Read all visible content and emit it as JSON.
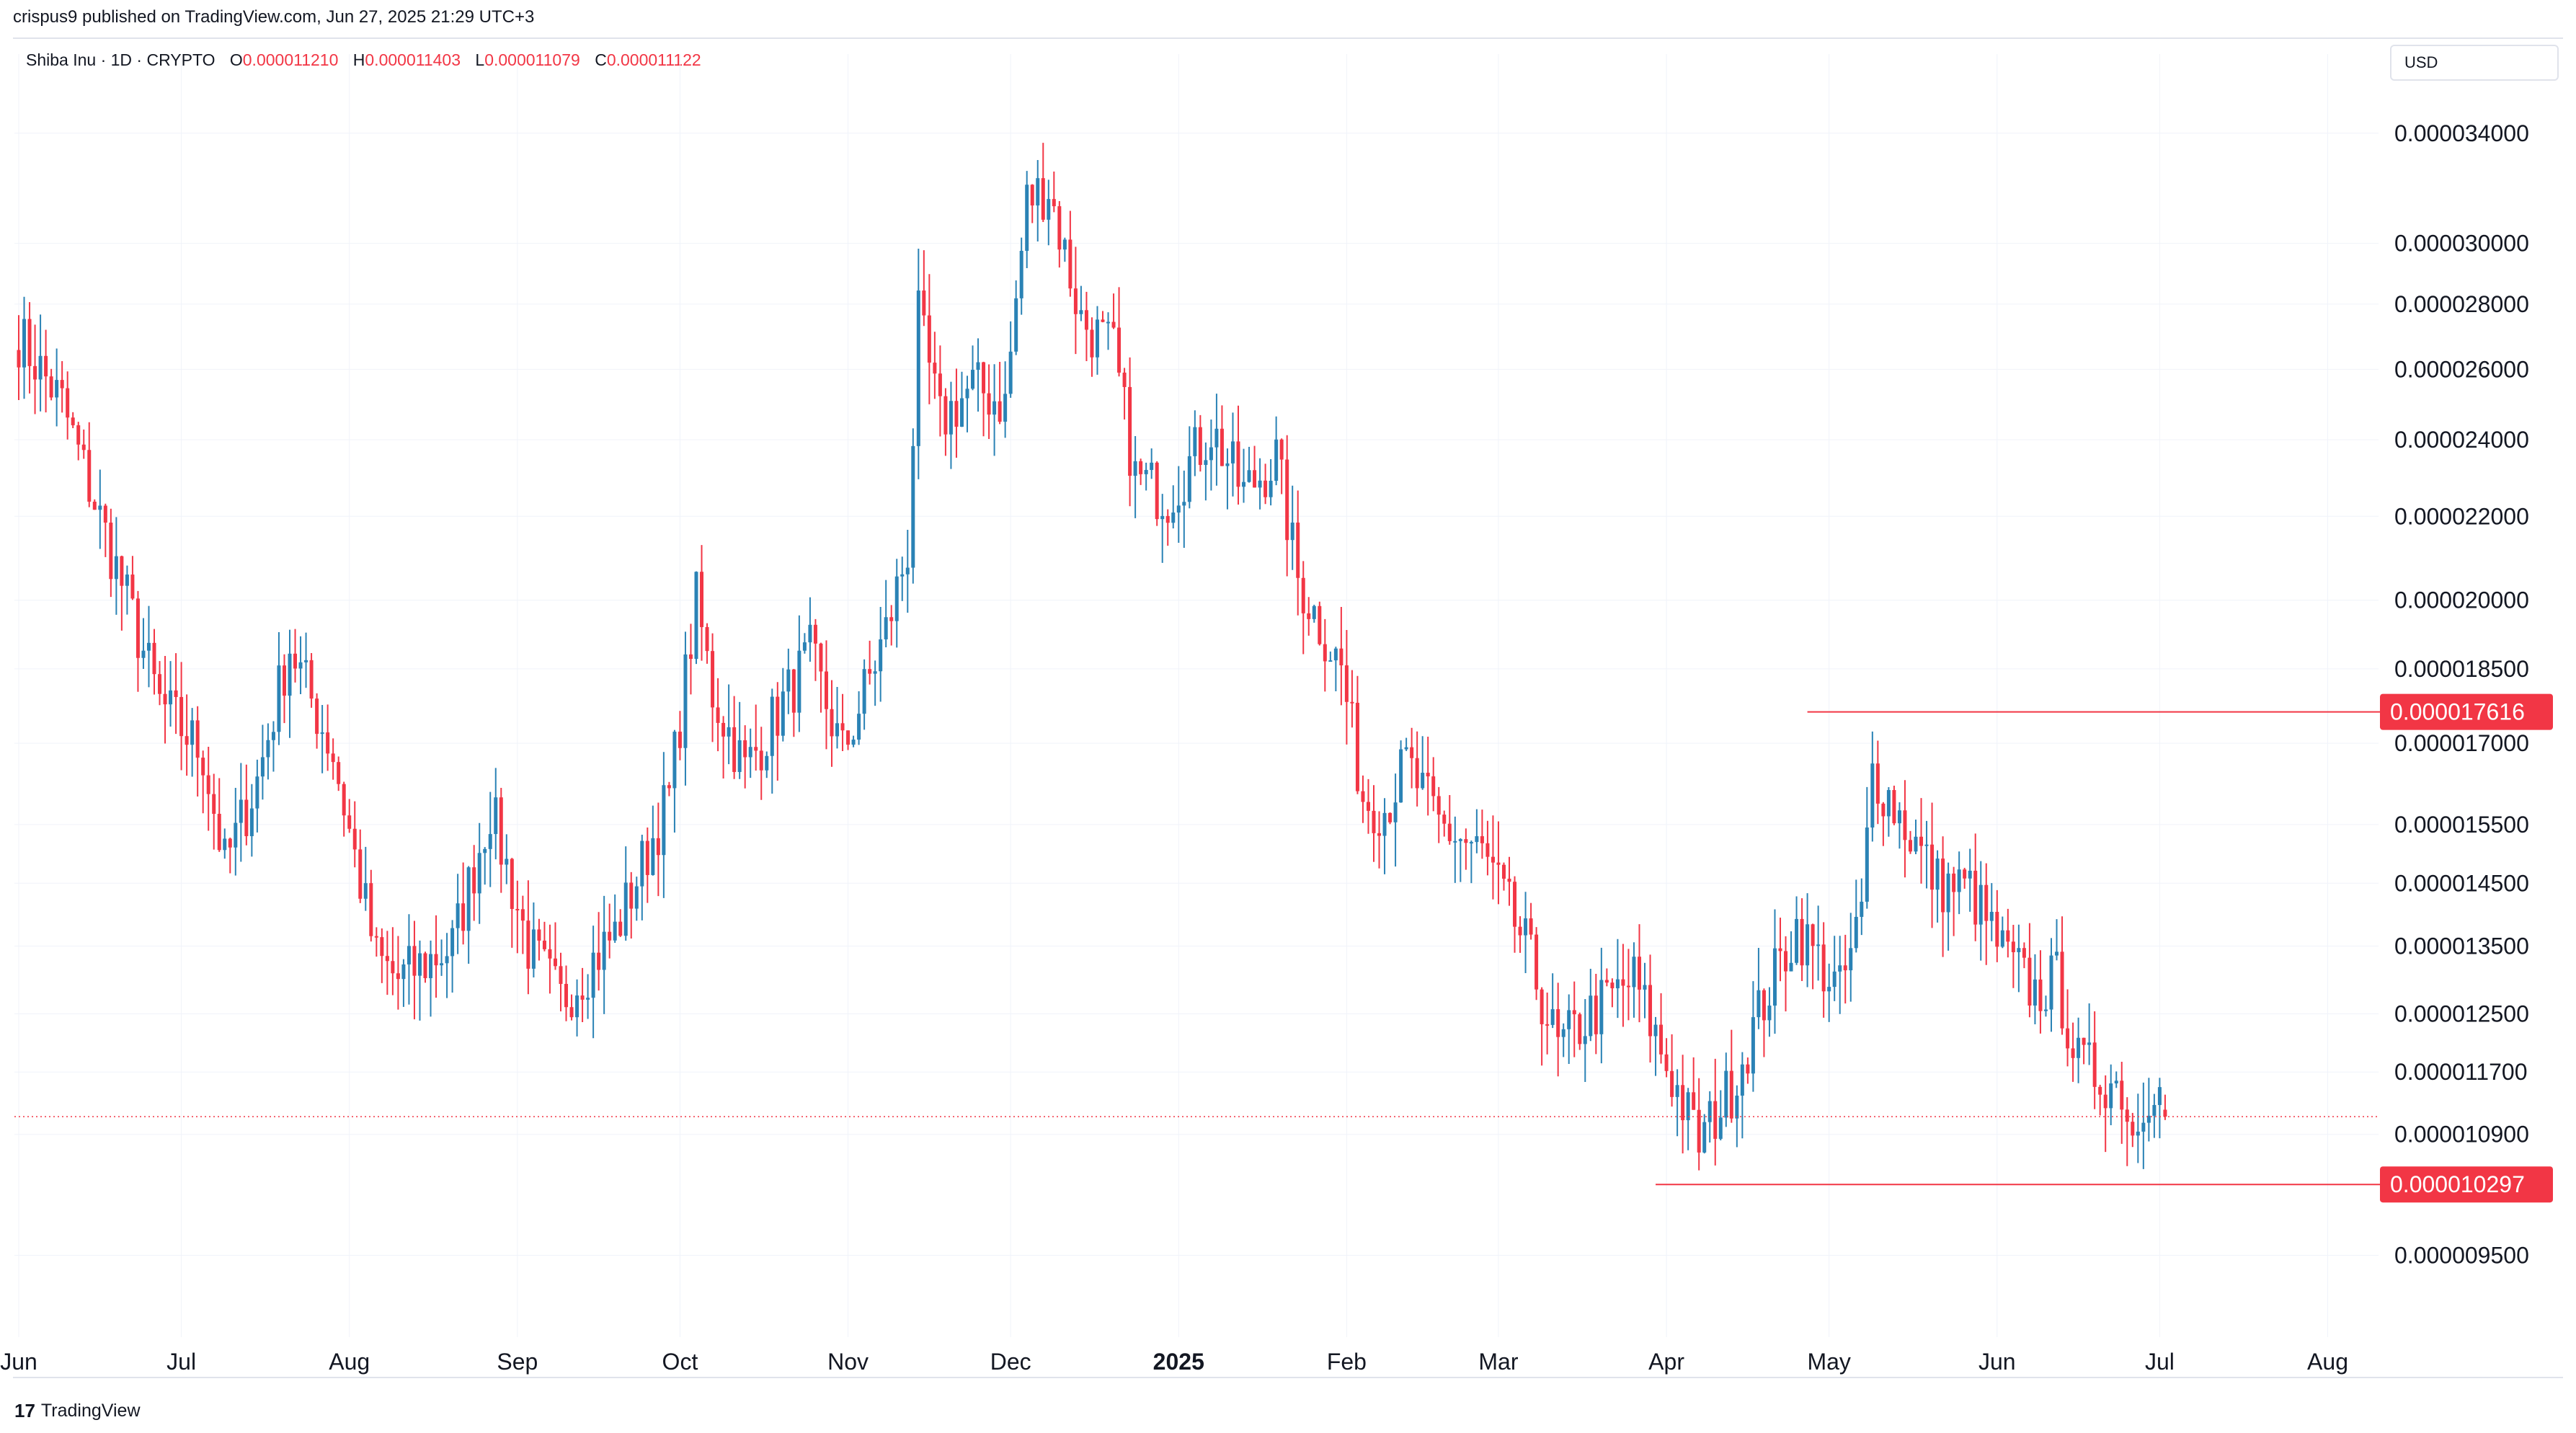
{
  "publish_line": "crispus9 published on TradingView.com, Jun 27, 2025 21:29 UTC+3",
  "legend": {
    "symbol": "Shiba Inu · 1D · CRYPTO",
    "o_label": "O",
    "o_value": "0.000011210",
    "h_label": "H",
    "h_value": "0.000011403",
    "l_label": "L",
    "l_value": "0.000011079",
    "c_label": "C",
    "c_value": "0.000011122"
  },
  "currency": "USD",
  "footer": {
    "logo_mark": "17",
    "logo_text": "TradingView"
  },
  "colors": {
    "up": "#2a82b5",
    "down": "#f23645",
    "grid": "#f0f3fa",
    "text": "#131722",
    "line": "#f23645"
  },
  "chart_data": {
    "type": "candlestick",
    "title": "Shiba Inu · 1D · CRYPTO",
    "scale": "log",
    "y_range": [
      8.8e-06,
      3.6e-05
    ],
    "y_ticks": [
      "0.000034000",
      "0.000030000",
      "0.000028000",
      "0.000026000",
      "0.000024000",
      "0.000022000",
      "0.000020000",
      "0.000018500",
      "0.000017000",
      "0.000015500",
      "0.000014500",
      "0.000013500",
      "0.000012500",
      "0.000011700",
      "0.000010900",
      "0.000009500"
    ],
    "x_ticks": [
      {
        "label": "Jun",
        "day": 0,
        "bold": false
      },
      {
        "label": "Jul",
        "day": 30,
        "bold": false
      },
      {
        "label": "Aug",
        "day": 61,
        "bold": false
      },
      {
        "label": "Sep",
        "day": 92,
        "bold": false
      },
      {
        "label": "Oct",
        "day": 122,
        "bold": false
      },
      {
        "label": "Nov",
        "day": 153,
        "bold": false
      },
      {
        "label": "Dec",
        "day": 183,
        "bold": false
      },
      {
        "label": "2025",
        "day": 214,
        "bold": true
      },
      {
        "label": "Feb",
        "day": 245,
        "bold": false
      },
      {
        "label": "Mar",
        "day": 273,
        "bold": false
      },
      {
        "label": "Apr",
        "day": 304,
        "bold": false
      },
      {
        "label": "May",
        "day": 334,
        "bold": false
      },
      {
        "label": "Jun",
        "day": 365,
        "bold": false
      },
      {
        "label": "Jul",
        "day": 395,
        "bold": false
      },
      {
        "label": "Aug",
        "day": 426,
        "bold": false
      }
    ],
    "horizontal_levels": [
      {
        "label": "0.000017616",
        "value": 1.7616e-05,
        "from_day": 330,
        "style": "solid"
      },
      {
        "label": "0.000010297",
        "value": 1.0297e-05,
        "from_day": 302,
        "style": "solid"
      }
    ],
    "last_price_line": {
      "value": 1.1122e-05,
      "style": "dotted"
    },
    "waypoints": [
      [
        0,
        2.7e-05
      ],
      [
        8,
        2.5e-05
      ],
      [
        20,
        2e-05
      ],
      [
        26,
        1.78e-05
      ],
      [
        34,
        1.68e-05
      ],
      [
        38,
        1.48e-05
      ],
      [
        44,
        1.63e-05
      ],
      [
        50,
        1.9e-05
      ],
      [
        58,
        1.68e-05
      ],
      [
        66,
        1.33e-05
      ],
      [
        70,
        1.3e-05
      ],
      [
        80,
        1.35e-05
      ],
      [
        87,
        1.58e-05
      ],
      [
        94,
        1.35e-05
      ],
      [
        100,
        1.27e-05
      ],
      [
        110,
        1.37e-05
      ],
      [
        120,
        1.6e-05
      ],
      [
        125,
        2e-05
      ],
      [
        128,
        1.8e-05
      ],
      [
        134,
        1.65e-05
      ],
      [
        140,
        1.76e-05
      ],
      [
        146,
        1.88e-05
      ],
      [
        152,
        1.68e-05
      ],
      [
        160,
        1.93e-05
      ],
      [
        164,
        2.12e-05
      ],
      [
        166,
        2.75e-05
      ],
      [
        170,
        2.45e-05
      ],
      [
        176,
        2.55e-05
      ],
      [
        182,
        2.5e-05
      ],
      [
        186,
        3.15e-05
      ],
      [
        190,
        3.2e-05
      ],
      [
        196,
        2.75e-05
      ],
      [
        202,
        2.65e-05
      ],
      [
        206,
        2.3e-05
      ],
      [
        212,
        2.25e-05
      ],
      [
        220,
        2.43e-05
      ],
      [
        226,
        2.26e-05
      ],
      [
        232,
        2.35e-05
      ],
      [
        236,
        2.05e-05
      ],
      [
        244,
        1.85e-05
      ],
      [
        248,
        1.6e-05
      ],
      [
        252,
        1.58e-05
      ],
      [
        256,
        1.66e-05
      ],
      [
        262,
        1.55e-05
      ],
      [
        270,
        1.5e-05
      ],
      [
        278,
        1.35e-05
      ],
      [
        284,
        1.2e-05
      ],
      [
        290,
        1.25e-05
      ],
      [
        298,
        1.3e-05
      ],
      [
        304,
        1.18e-05
      ],
      [
        310,
        1.08e-05
      ],
      [
        316,
        1.15e-05
      ],
      [
        322,
        1.27e-05
      ],
      [
        328,
        1.38e-05
      ],
      [
        336,
        1.28e-05
      ],
      [
        340,
        1.4e-05
      ],
      [
        342,
        1.65e-05
      ],
      [
        348,
        1.55e-05
      ],
      [
        354,
        1.45e-05
      ],
      [
        360,
        1.44e-05
      ],
      [
        366,
        1.34e-05
      ],
      [
        372,
        1.28e-05
      ],
      [
        376,
        1.3e-05
      ],
      [
        380,
        1.18e-05
      ],
      [
        388,
        1.15e-05
      ],
      [
        390,
        1.09e-05
      ],
      [
        392,
        1.14e-05
      ],
      [
        394,
        1.16e-05
      ],
      [
        396,
        1.12e-05
      ]
    ],
    "last_candle": {
      "open": 1.121e-05,
      "high": 1.1403e-05,
      "low": 1.1079e-05,
      "close": 1.1122e-05
    }
  }
}
